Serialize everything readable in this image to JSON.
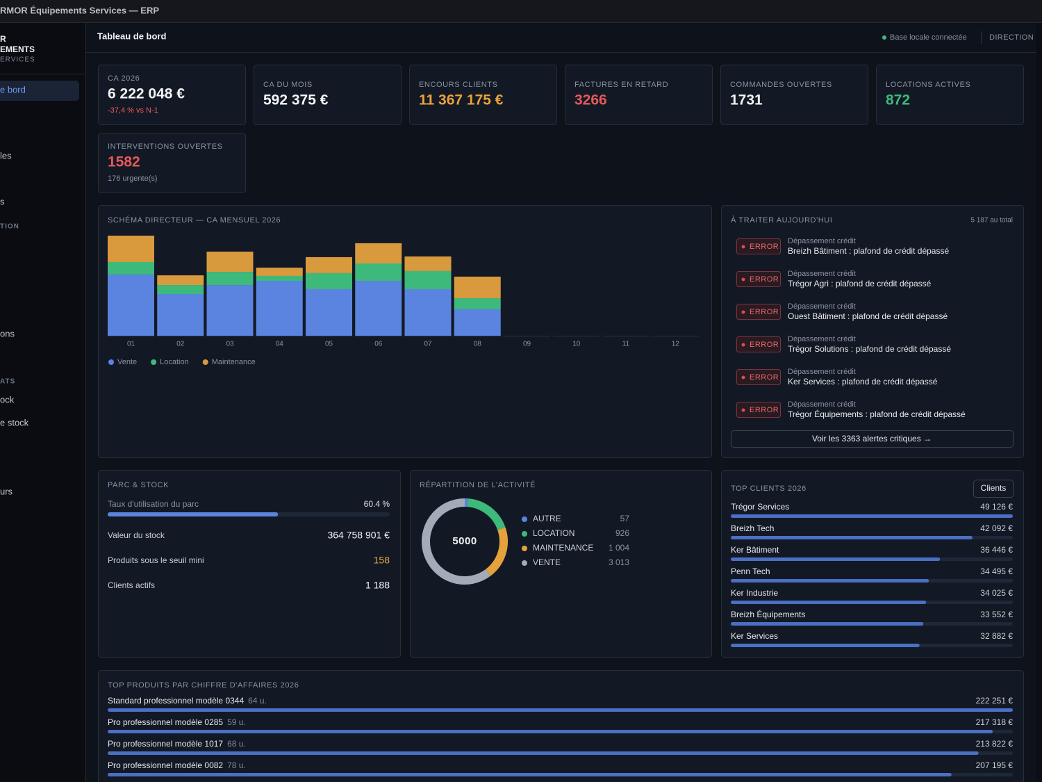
{
  "window_title": "RMOR Équipements Services — ERP",
  "sidebar": {
    "brand_lines": [
      "R",
      "EMENTS"
    ],
    "brand_sub": "ERVICES",
    "entries": [
      "e bord",
      "les",
      "s",
      "TION",
      "ons",
      "ATS",
      "ock",
      "e stock",
      "urs"
    ]
  },
  "header": {
    "title": "Tableau de bord",
    "status": "Base locale connectée",
    "role": "DIRECTION"
  },
  "kpis": [
    {
      "label": "CA 2026",
      "value": "6 222 048 €",
      "note": "-37,4 % vs N-1"
    },
    {
      "label": "CA DU MOIS",
      "value": "592 375 €"
    },
    {
      "label": "ENCOURS CLIENTS",
      "value": "11 367 175 €"
    },
    {
      "label": "FACTURES EN RETARD",
      "value": "3266"
    },
    {
      "label": "COMMANDES OUVERTES",
      "value": "1731"
    },
    {
      "label": "LOCATIONS ACTIVES",
      "value": "872"
    },
    {
      "label": "INTERVENTIONS OUVERTES",
      "value": "1582",
      "note": "176 urgente(s)"
    }
  ],
  "monthly_chart": {
    "type": "bar",
    "stacked": true,
    "title": "SCHÉMA DIRECTEUR — CA MENSUEL 2026",
    "categories": [
      "01",
      "02",
      "03",
      "04",
      "05",
      "06",
      "07",
      "08",
      "09",
      "10",
      "11",
      "12"
    ],
    "series": [
      {
        "name": "Vente",
        "color": "#5b84e0",
        "values": [
          612000,
          417000,
          507000,
          549000,
          466000,
          549000,
          466000,
          264000,
          0,
          0,
          0,
          0
        ]
      },
      {
        "name": "Location",
        "color": "#3dba7b",
        "values": [
          125000,
          90000,
          132000,
          49000,
          160000,
          174000,
          181000,
          111000,
          0,
          0,
          0,
          0
        ]
      },
      {
        "name": "Maintenance",
        "color": "#d99a3e",
        "values": [
          264000,
          97000,
          202000,
          83000,
          160000,
          202000,
          146000,
          216000,
          0,
          0,
          0,
          0
        ]
      }
    ]
  },
  "alerts": {
    "title": "À TRAITER AUJOURD'HUI",
    "total": "5 187 au total",
    "items": [
      {
        "level": "ERROR",
        "category": "Dépassement crédit",
        "message": "Breizh Bâtiment : plafond de crédit dépassé"
      },
      {
        "level": "ERROR",
        "category": "Dépassement crédit",
        "message": "Trégor Agri : plafond de crédit dépassé"
      },
      {
        "level": "ERROR",
        "category": "Dépassement crédit",
        "message": "Ouest Bâtiment : plafond de crédit dépassé"
      },
      {
        "level": "ERROR",
        "category": "Dépassement crédit",
        "message": "Trégor Solutions : plafond de crédit dépassé"
      },
      {
        "level": "ERROR",
        "category": "Dépassement crédit",
        "message": "Ker Services : plafond de crédit dépassé"
      },
      {
        "level": "ERROR",
        "category": "Dépassement crédit",
        "message": "Trégor Équipements : plafond de crédit dépassé"
      }
    ],
    "button": "Voir les 3363 alertes critiques →"
  },
  "parc_stock": {
    "title": "PARC & STOCK",
    "utilization": {
      "label": "Taux d'utilisation du parc",
      "value": 60.4,
      "value_label": "60.4 %"
    },
    "rows": [
      {
        "label": "Valeur du stock",
        "value": "364 758 901 €"
      },
      {
        "label": "Produits sous le seuil mini",
        "value": "158"
      },
      {
        "label": "Clients actifs",
        "value": "1 188"
      }
    ]
  },
  "activity": {
    "type": "pie",
    "title": "RÉPARTITION DE L'ACTIVITÉ",
    "total": "5000",
    "categories": [
      "AUTRE",
      "LOCATION",
      "MAINTENANCE",
      "VENTE"
    ],
    "values": [
      57,
      926,
      1004,
      3013
    ],
    "value_labels": [
      "57",
      "926",
      "1 004",
      "3 013"
    ],
    "colors": [
      "#5b84e0",
      "#3dba7b",
      "#e5a23c",
      "#a3aab8"
    ]
  },
  "top_clients": {
    "title": "TOP CLIENTS 2026",
    "button": "Clients",
    "names": [
      "Trégor Services",
      "Breizh Tech",
      "Ker Bâtiment",
      "Penn Tech",
      "Ker Industrie",
      "Breizh Équipements",
      "Ker Services"
    ],
    "values": [
      49126,
      42092,
      36446,
      34495,
      34025,
      33552,
      32882
    ],
    "value_labels": [
      "49 126 €",
      "42 092 €",
      "36 446 €",
      "34 495 €",
      "34 025 €",
      "33 552 €",
      "32 882 €"
    ]
  },
  "top_products": {
    "title": "TOP PRODUITS PAR CHIFFRE D'AFFAIRES 2026",
    "names": [
      "Standard professionnel modèle 0344",
      "Pro professionnel modèle 0285",
      "Pro professionnel modèle 1017",
      "Pro professionnel modèle 0082"
    ],
    "quantities": [
      "64 u.",
      "59 u.",
      "68 u.",
      "78 u."
    ],
    "values": [
      222251,
      217318,
      213822,
      207195
    ],
    "value_labels": [
      "222 251 €",
      "217 318 €",
      "213 822 €",
      "207 195 €"
    ]
  }
}
